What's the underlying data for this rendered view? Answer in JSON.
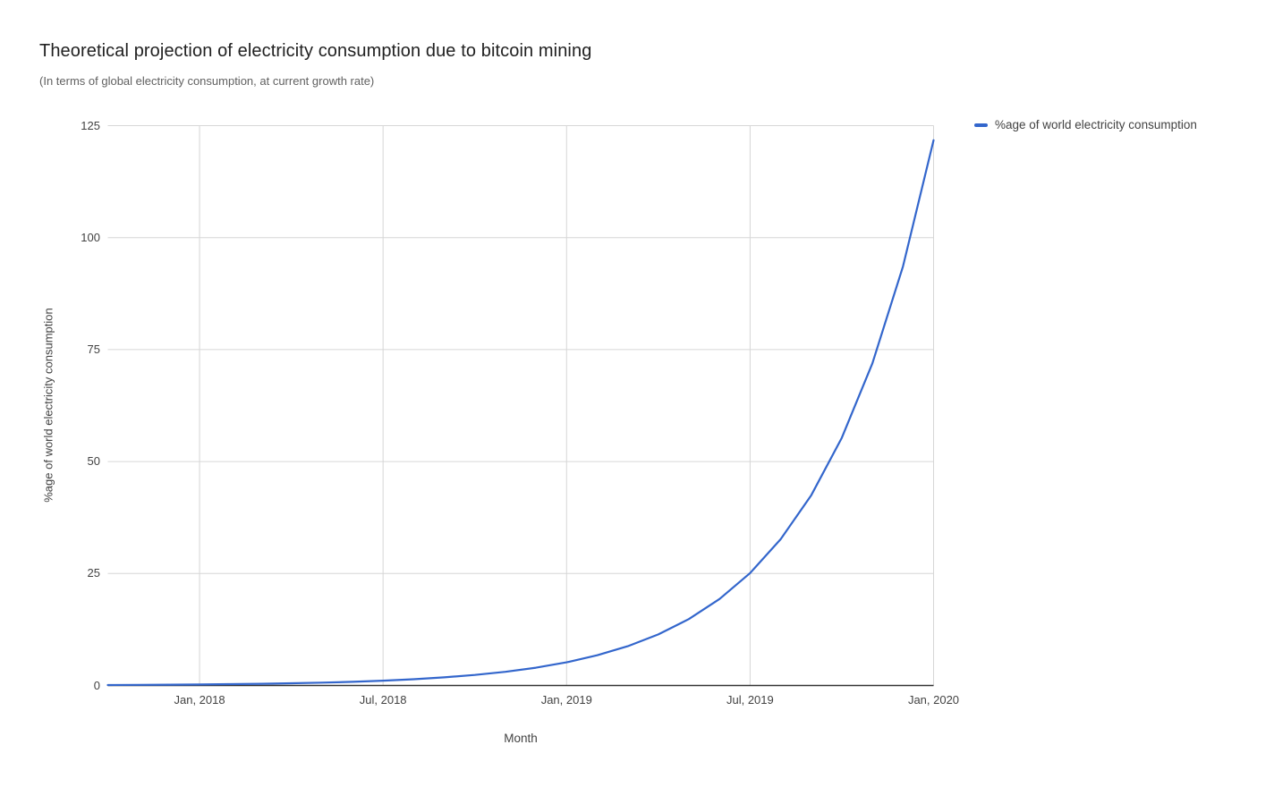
{
  "page": {
    "background": "#ffffff"
  },
  "chart_data": {
    "type": "line",
    "title": "Theoretical projection of electricity consumption due to bitcoin mining",
    "subtitle": "(In terms of global electricity consumption, at current growth rate)",
    "xlabel": "Month",
    "ylabel": "%age of world electricity consumption",
    "ylim": [
      0,
      125
    ],
    "y_ticks": [
      0,
      25,
      50,
      75,
      100,
      125
    ],
    "x_ticks": [
      {
        "label": "Jan, 2018",
        "month_index": 3
      },
      {
        "label": "Jul, 2018",
        "month_index": 9
      },
      {
        "label": "Jan, 2019",
        "month_index": 15
      },
      {
        "label": "Jul, 2019",
        "month_index": 21
      },
      {
        "label": "Jan, 2020",
        "month_index": 27
      }
    ],
    "x_month_span": 27,
    "grid": true,
    "legend": {
      "position": "top-right",
      "entries": [
        {
          "label": "%age of world electricity consumption",
          "color": "#3366cc"
        }
      ]
    },
    "series": [
      {
        "name": "%age of world electricity consumption",
        "color": "#3366cc",
        "months": [
          "Oct 2017",
          "Nov 2017",
          "Dec 2017",
          "Jan 2018",
          "Feb 2018",
          "Mar 2018",
          "Apr 2018",
          "May 2018",
          "Jun 2018",
          "Jul 2018",
          "Aug 2018",
          "Sep 2018",
          "Oct 2018",
          "Nov 2018",
          "Dec 2018",
          "Jan 2019",
          "Feb 2019",
          "Mar 2019",
          "Apr 2019",
          "May 2019",
          "Jun 2019",
          "Jul 2019",
          "Aug 2019",
          "Sep 2019",
          "Oct 2019",
          "Nov 2019",
          "Dec 2019",
          "Jan 2020"
        ],
        "values": [
          0.1,
          0.13,
          0.17,
          0.22,
          0.29,
          0.37,
          0.49,
          0.63,
          0.82,
          1.07,
          1.39,
          1.81,
          2.35,
          3.06,
          3.98,
          5.18,
          6.74,
          8.76,
          11.4,
          14.83,
          19.3,
          25.1,
          32.67,
          42.5,
          55.29,
          71.93,
          93.58,
          121.75
        ]
      }
    ],
    "colors": {
      "grid": "#d6d6d6",
      "axis_line": "#333333",
      "title": "#212121",
      "subtitle": "#616161",
      "tick_label": "#424242",
      "axis_title": "#424242",
      "legend_text": "#424242"
    }
  }
}
